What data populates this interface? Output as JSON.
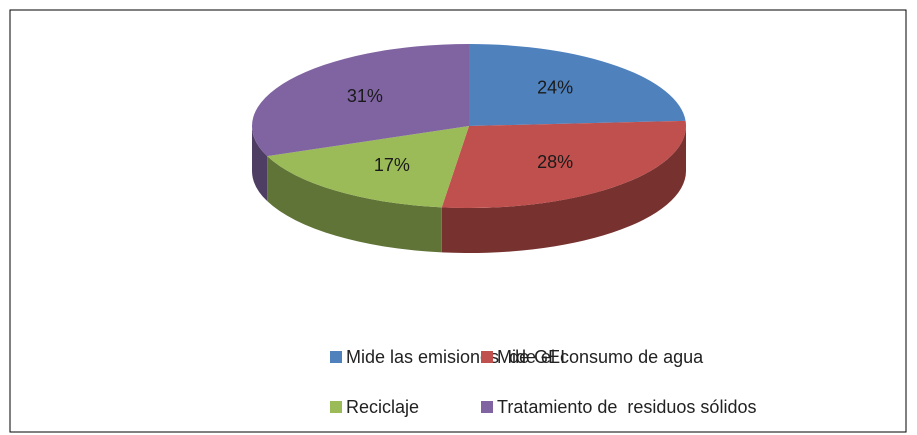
{
  "chart_data": {
    "type": "pie",
    "categories": [
      "Mide las emisiones  de GEI",
      "Mide el consumo de agua",
      "Reciclaje",
      "Tratamiento de  residuos sólidos"
    ],
    "values": [
      24,
      28,
      17,
      31
    ],
    "value_labels": [
      "24%",
      "28%",
      "17%",
      "31%"
    ],
    "colors": [
      "#4f81bd",
      "#c0504d",
      "#9bbb59",
      "#8064a2"
    ],
    "legend": "bottom"
  }
}
